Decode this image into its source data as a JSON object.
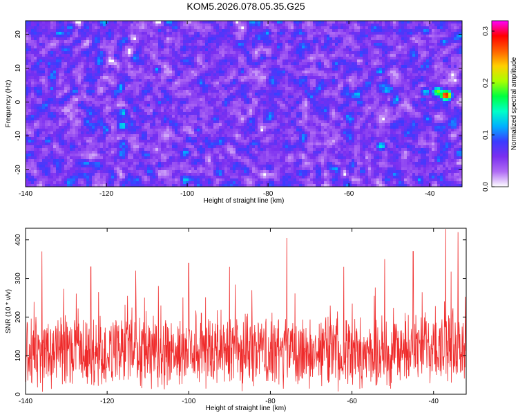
{
  "title": "KOM5.2026.078.05.35.G25",
  "chart_data": [
    {
      "type": "heatmap",
      "title": "KOM5.2026.078.05.35.G25",
      "xlabel": "Height of straight line (km)",
      "ylabel": "Frequency (Hz)",
      "xlim": [
        -140,
        -32
      ],
      "ylim": [
        -25,
        24
      ],
      "x_ticks": [
        -140,
        -120,
        -100,
        -80,
        -60,
        -40
      ],
      "y_ticks": [
        -20,
        -10,
        0,
        10,
        20
      ],
      "colorbar": {
        "label": "Normalized spectral amplitude",
        "range": [
          0.0,
          0.32
        ],
        "ticks": [
          0.0,
          0.1,
          0.2,
          0.3
        ],
        "colormap": [
          "#ffffff",
          "#b06cf4",
          "#7a2ff0",
          "#3b3bff",
          "#00b0ff",
          "#00ffc8",
          "#00ff40",
          "#aaff00",
          "#ffd000",
          "#ff6000",
          "#ff0000",
          "#ff00ff"
        ]
      },
      "background_level": 0.05,
      "hotspots": [
        {
          "x": -36,
          "y": 2,
          "value": 0.3
        },
        {
          "x": -38,
          "y": 3,
          "value": 0.2
        },
        {
          "x": -41,
          "y": 3,
          "value": 0.13
        },
        {
          "x": -52,
          "y": -13,
          "value": 0.14
        },
        {
          "x": -116,
          "y": -7,
          "value": 0.14
        },
        {
          "x": -129,
          "y": 22,
          "value": 0.11
        },
        {
          "x": -103,
          "y": 22,
          "value": 0.1
        },
        {
          "x": -41,
          "y": 21,
          "value": 0.11
        },
        {
          "x": -72,
          "y": -21,
          "value": 0.1
        },
        {
          "x": -93,
          "y": -5,
          "value": 0.1
        },
        {
          "x": -121,
          "y": 14,
          "value": 0.09
        },
        {
          "x": -56,
          "y": 15,
          "value": 0.09
        }
      ]
    },
    {
      "type": "line",
      "xlabel": "Height of straight line (km)",
      "ylabel": "SNR (10 * v/v)",
      "xlim": [
        -140,
        -32
      ],
      "ylim": [
        0,
        430
      ],
      "x_ticks": [
        -140,
        -120,
        -100,
        -80,
        -60,
        -40
      ],
      "y_ticks": [
        0,
        100,
        200,
        300,
        400
      ],
      "color": "#ef2b2b",
      "series": [
        {
          "name": "SNR",
          "mean": 110,
          "noise_band": [
            20,
            260
          ],
          "peaks": [
            {
              "x": -136,
              "y": 370
            },
            {
              "x": -124,
              "y": 330
            },
            {
              "x": -113,
              "y": 320
            },
            {
              "x": -100,
              "y": 340
            },
            {
              "x": -90,
              "y": 330
            },
            {
              "x": -76,
              "y": 405
            },
            {
              "x": -62,
              "y": 330
            },
            {
              "x": -52,
              "y": 350
            },
            {
              "x": -45,
              "y": 370
            },
            {
              "x": -37,
              "y": 428
            },
            {
              "x": -34,
              "y": 420
            }
          ]
        }
      ]
    }
  ]
}
